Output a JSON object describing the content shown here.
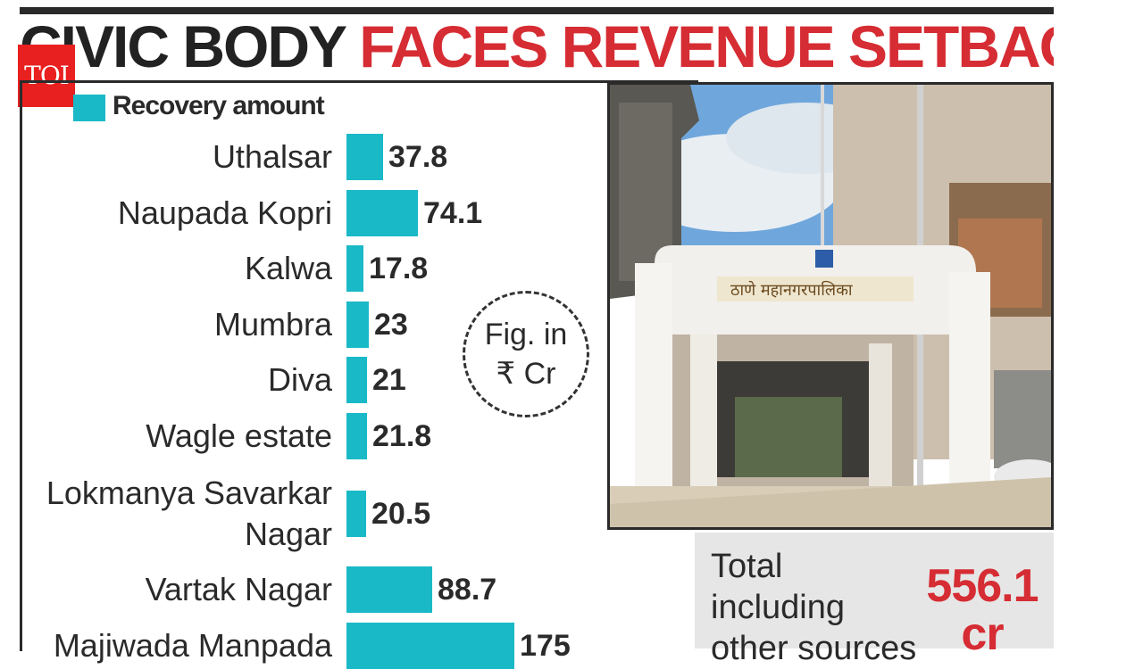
{
  "headline": {
    "part1": "CIVIC BODY ",
    "part2": "FACES REVENUE SETBACK"
  },
  "logo": {
    "text": "TOI"
  },
  "colors": {
    "bar": "#1ab9c7",
    "headline_red": "#d62c33",
    "logo_red": "#e8201f"
  },
  "unit_note": {
    "line1": "Fig. in",
    "line2": "₹ Cr"
  },
  "total": {
    "label": "Total including other sources",
    "value": "556.1",
    "unit": "cr"
  },
  "chart_data": {
    "type": "bar",
    "orientation": "horizontal",
    "legend": [
      "Recovery amount"
    ],
    "categories": [
      "Uthalsar",
      "Naupada Kopri",
      "Kalwa",
      "Mumbra",
      "Diva",
      "Wagle estate",
      "Lokmanya Savarkar Nagar",
      "Vartak Nagar",
      "Majiwada Manpada"
    ],
    "category_lines": [
      [
        "Uthalsar"
      ],
      [
        "Naupada Kopri"
      ],
      [
        "Kalwa"
      ],
      [
        "Mumbra"
      ],
      [
        "Diva"
      ],
      [
        "Wagle estate"
      ],
      [
        "Lokmanya Savarkar",
        "Nagar"
      ],
      [
        "Vartak Nagar"
      ],
      [
        "Majiwada Manpada"
      ]
    ],
    "series": [
      {
        "name": "Recovery amount",
        "values": [
          37.8,
          74.1,
          17.8,
          23,
          21,
          21.8,
          20.5,
          88.7,
          175
        ]
      }
    ],
    "value_labels": [
      "37.8",
      "74.1",
      "17.8",
      "23",
      "21",
      "21.8",
      "20.5",
      "88.7",
      "175"
    ]
  }
}
